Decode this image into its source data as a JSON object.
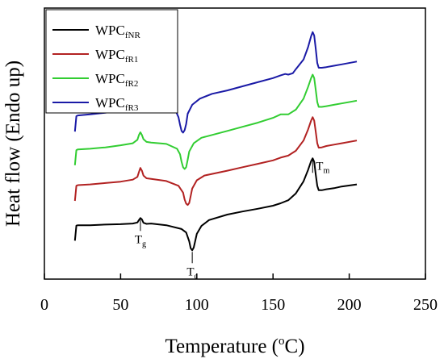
{
  "chart_data": {
    "type": "line",
    "xlabel": {
      "base": "Temperature (",
      "sup": "o",
      "tail": "C)"
    },
    "ylabel": "Heat flow (Endo up)",
    "xlim": [
      0,
      250
    ],
    "xticks": [
      0,
      50,
      100,
      150,
      200,
      250
    ],
    "yaxis_ticks": false,
    "grid": false,
    "legend_position": "top-left",
    "series": [
      {
        "name": "WPCfNR",
        "name_main": "WPC",
        "name_sub": "fNR",
        "color": "#000000",
        "x": [
          20,
          21,
          22,
          30,
          40,
          50,
          58,
          61,
          62,
          63,
          64,
          65,
          67,
          70,
          80,
          90,
          93,
          95,
          96,
          97,
          98,
          99,
          100,
          103,
          108,
          120,
          130,
          140,
          150,
          155,
          160,
          165,
          170,
          173,
          175,
          176,
          177,
          178,
          179,
          180,
          182,
          185,
          190,
          195,
          205
        ],
        "y": [
          -0.38,
          0.06,
          0.07,
          0.07,
          0.09,
          0.1,
          0.12,
          0.15,
          0.22,
          0.28,
          0.24,
          0.14,
          0.11,
          0.12,
          0.07,
          -0.04,
          -0.14,
          -0.4,
          -0.6,
          -0.66,
          -0.58,
          -0.38,
          -0.18,
          0.05,
          0.22,
          0.38,
          0.47,
          0.55,
          0.64,
          0.71,
          0.8,
          1.0,
          1.35,
          1.68,
          1.94,
          2.02,
          1.92,
          1.55,
          1.22,
          1.09,
          1.09,
          1.12,
          1.15,
          1.2,
          1.26
        ]
      },
      {
        "name": "WPCfR1",
        "name_main": "WPC",
        "name_sub": "fR1",
        "color": "#b22222",
        "x": [
          20,
          21,
          22,
          30,
          40,
          50,
          58,
          61,
          62,
          63,
          64,
          65,
          67,
          70,
          80,
          88,
          91,
          92,
          93,
          94,
          95,
          96,
          97,
          100,
          105,
          120,
          130,
          140,
          150,
          155,
          160,
          165,
          170,
          173,
          175,
          176,
          177,
          178,
          179,
          180,
          182,
          185,
          190,
          195,
          205
        ],
        "y": [
          0.78,
          1.22,
          1.24,
          1.26,
          1.3,
          1.34,
          1.4,
          1.48,
          1.62,
          1.74,
          1.66,
          1.52,
          1.44,
          1.42,
          1.36,
          1.22,
          1.02,
          0.82,
          0.7,
          0.66,
          0.72,
          0.92,
          1.14,
          1.38,
          1.52,
          1.66,
          1.76,
          1.86,
          1.96,
          2.04,
          2.1,
          2.24,
          2.54,
          2.86,
          3.12,
          3.22,
          3.12,
          2.8,
          2.46,
          2.33,
          2.34,
          2.38,
          2.42,
          2.46,
          2.54
        ]
      },
      {
        "name": "WPCfR2",
        "name_main": "WPC",
        "name_sub": "fR2",
        "color": "#32cd32",
        "x": [
          20,
          21,
          22,
          30,
          40,
          50,
          58,
          61,
          62,
          63,
          64,
          65,
          67,
          70,
          80,
          87,
          89,
          90,
          91,
          92,
          93,
          94,
          95,
          98,
          103,
          120,
          130,
          140,
          150,
          155,
          160,
          165,
          170,
          173,
          175,
          176,
          177,
          178,
          179,
          180,
          182,
          185,
          190,
          195,
          205
        ],
        "y": [
          1.82,
          2.26,
          2.28,
          2.3,
          2.34,
          2.4,
          2.46,
          2.56,
          2.7,
          2.78,
          2.7,
          2.58,
          2.5,
          2.48,
          2.44,
          2.3,
          2.14,
          1.92,
          1.76,
          1.71,
          1.76,
          1.98,
          2.22,
          2.46,
          2.62,
          2.82,
          2.94,
          3.06,
          3.2,
          3.3,
          3.3,
          3.44,
          3.76,
          4.1,
          4.36,
          4.46,
          4.36,
          4.02,
          3.66,
          3.52,
          3.52,
          3.54,
          3.58,
          3.62,
          3.7
        ]
      },
      {
        "name": "WPCfR3",
        "name_main": "WPC",
        "name_sub": "fR3",
        "color": "#1a1aa6",
        "x": [
          20,
          21,
          22,
          30,
          40,
          50,
          58,
          61,
          62,
          63,
          64,
          65,
          67,
          69,
          70,
          71,
          72,
          75,
          80,
          86,
          88,
          89,
          90,
          91,
          92,
          93,
          94,
          97,
          102,
          110,
          120,
          130,
          140,
          150,
          155,
          158,
          160,
          163,
          165,
          170,
          173,
          175,
          176,
          177,
          178,
          179,
          180,
          182,
          185,
          190,
          195,
          205
        ],
        "y": [
          2.8,
          3.25,
          3.27,
          3.3,
          3.35,
          3.42,
          3.52,
          3.64,
          3.82,
          3.92,
          3.84,
          3.68,
          3.58,
          3.56,
          3.6,
          3.64,
          3.58,
          3.56,
          3.56,
          3.42,
          3.22,
          3.0,
          2.82,
          2.77,
          2.84,
          3.02,
          3.32,
          3.58,
          3.76,
          3.9,
          4.0,
          4.12,
          4.24,
          4.36,
          4.44,
          4.48,
          4.46,
          4.5,
          4.62,
          4.9,
          5.26,
          5.58,
          5.7,
          5.6,
          5.22,
          4.8,
          4.66,
          4.66,
          4.68,
          4.72,
          4.76,
          4.84
        ]
      }
    ],
    "annotations": [
      {
        "main": "T",
        "sub": "g",
        "x": 63,
        "y": 0.28,
        "place": "below"
      },
      {
        "main": "T",
        "sub": "c",
        "x": 97,
        "y": -0.66,
        "place": "below"
      },
      {
        "main": "T",
        "sub": "m",
        "x": 176,
        "y": 2.02,
        "place": "right"
      }
    ]
  }
}
